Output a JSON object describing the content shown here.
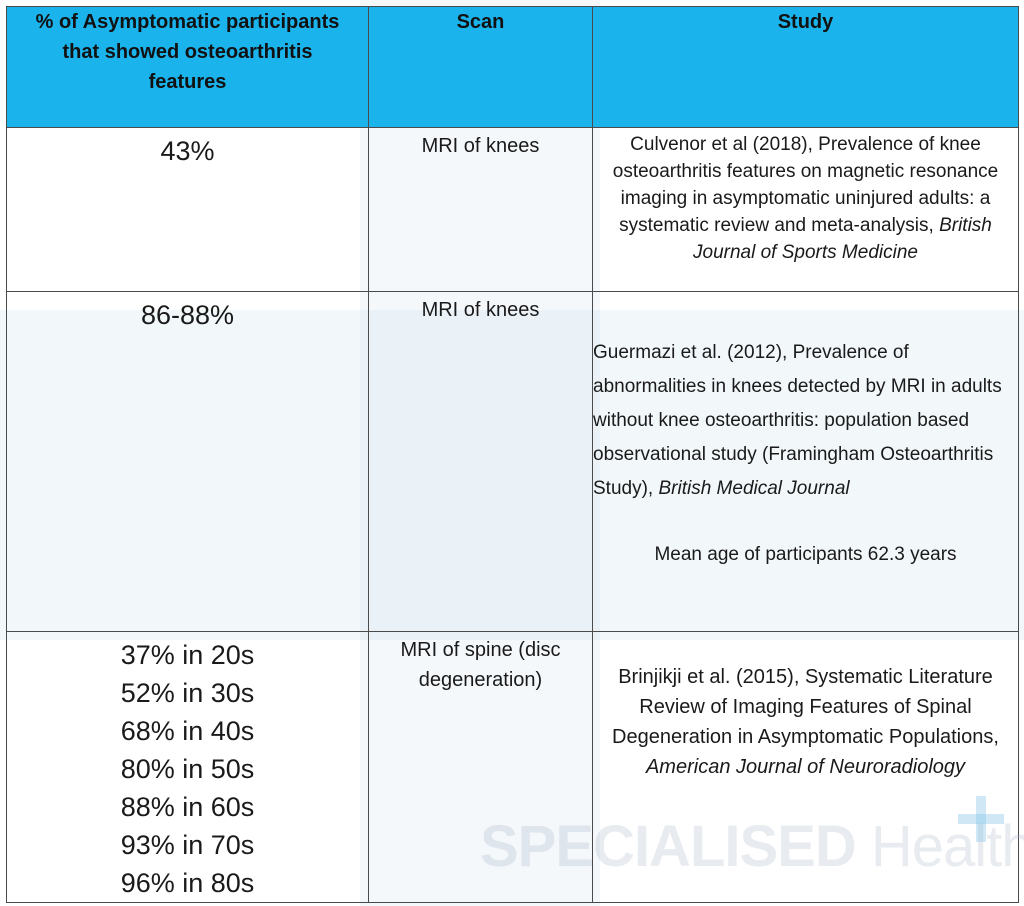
{
  "table": {
    "headers": [
      "% of Asymptomatic participants that showed osteoarthritis features",
      "Scan",
      "Study"
    ],
    "rows": [
      {
        "percent": "43%",
        "scan": "MRI of knees",
        "study_main": "Culvenor et al (2018), Prevalence of knee osteoarthritis features on magnetic resonance imaging in asymptomatic uninjured adults: a systematic review and meta-analysis, ",
        "study_journal": "British Journal of Sports Medicine"
      },
      {
        "percent": "86-88%",
        "scan": "MRI of knees",
        "study_main": "Guermazi et al. (2012), Prevalence of abnormalities in knees detected by MRI in adults without knee osteoarthritis: population based observational study (Framingham Osteoarthritis Study), ",
        "study_journal": "British Medical Journal",
        "study_note": "Mean age of participants 62.3 years"
      },
      {
        "percent_list": [
          "37% in 20s",
          "52% in 30s",
          "68% in 40s",
          "80% in 50s",
          "88% in 60s",
          "93% in 70s",
          "96% in 80s"
        ],
        "scan": "MRI of spine (disc degeneration)",
        "study_main": "Brinjikji et al. (2015), Systematic Literature Review of Imaging Features of Spinal Degeneration in Asymptomatic Populations, ",
        "study_journal": "American Journal of Neuroradiology"
      }
    ]
  },
  "watermark": {
    "brand_bold": "SPECIALISED",
    "brand_light": "Health",
    "icon": "plus-icon"
  }
}
